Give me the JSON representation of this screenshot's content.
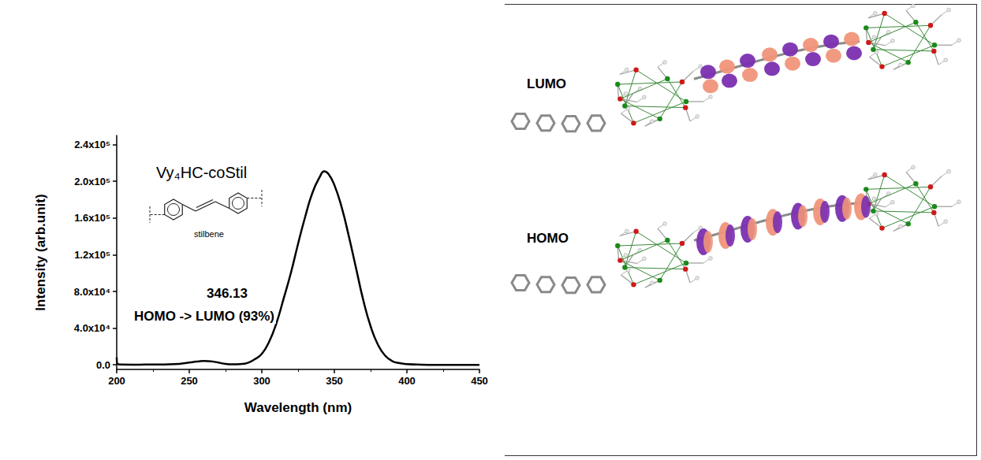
{
  "chart_data": {
    "type": "line",
    "title": "Vy₄HC-coStil",
    "annotations": [
      "stilbene",
      "346.13",
      "HOMO -> LUMO (93%)"
    ],
    "x_label": "Wavelength (nm)",
    "y_label": "Intensity (arb.unit)",
    "x": [
      200,
      201,
      210,
      220,
      230,
      240,
      250,
      255,
      260,
      265,
      270,
      275,
      280,
      285,
      290,
      295,
      300,
      305,
      310,
      315,
      320,
      325,
      330,
      335,
      340,
      343,
      346,
      350,
      355,
      360,
      365,
      370,
      375,
      380,
      385,
      390,
      395,
      400,
      410,
      420,
      430,
      440,
      450
    ],
    "values": [
      8000,
      500,
      200,
      300,
      400,
      800,
      2500,
      3500,
      4200,
      3800,
      2500,
      1000,
      500,
      800,
      2000,
      6000,
      12000,
      25000,
      45000,
      72000,
      100000,
      132000,
      162000,
      188000,
      205000,
      211000,
      208000,
      196000,
      172000,
      140000,
      105000,
      70000,
      42000,
      22000,
      10000,
      4000,
      1800,
      800,
      200,
      0,
      0,
      0,
      0
    ],
    "color": "#000000",
    "xlim": [
      200,
      450
    ],
    "xticks": [
      200,
      250,
      300,
      350,
      400,
      450
    ],
    "ylim": [
      -5000,
      250000
    ],
    "yticks": [
      {
        "value": 0,
        "label": "0.0"
      },
      {
        "value": 40000,
        "label": "4.0x10⁴"
      },
      {
        "value": 80000,
        "label": "8.0x10⁴"
      },
      {
        "value": 120000,
        "label": "1.2x10⁵"
      },
      {
        "value": 160000,
        "label": "1.6x10⁵"
      },
      {
        "value": 200000,
        "label": "2.0x10⁵"
      },
      {
        "value": 240000,
        "label": "2.4x10⁵"
      }
    ],
    "grid": false
  },
  "orbitals": {
    "labels": [
      "LUMO",
      "HOMO"
    ]
  }
}
